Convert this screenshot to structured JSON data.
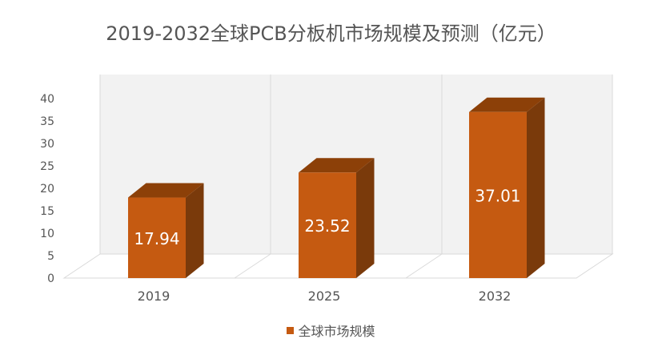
{
  "chart_data": {
    "type": "bar",
    "title": "2019-2032全球PCB分板机市场规模及预测（亿元）",
    "categories": [
      "2019",
      "2025",
      "2032"
    ],
    "series": [
      {
        "name": "全球市场规模",
        "values": [
          17.94,
          23.52,
          37.01
        ],
        "labels": [
          "17.94",
          "23.52",
          "37.01"
        ]
      }
    ],
    "ylim": [
      0,
      40
    ],
    "yticks": [
      "0",
      "5",
      "10",
      "15",
      "20",
      "25",
      "30",
      "35",
      "40"
    ],
    "grid": true,
    "three_d": true,
    "legend_position": "bottom",
    "colors": {
      "front": "#C55A11",
      "top": "#8C4008",
      "side": "#7A3A0B",
      "wall": "#F2F2F2",
      "gridline": "#D9D9D9",
      "text": "#555555"
    }
  }
}
